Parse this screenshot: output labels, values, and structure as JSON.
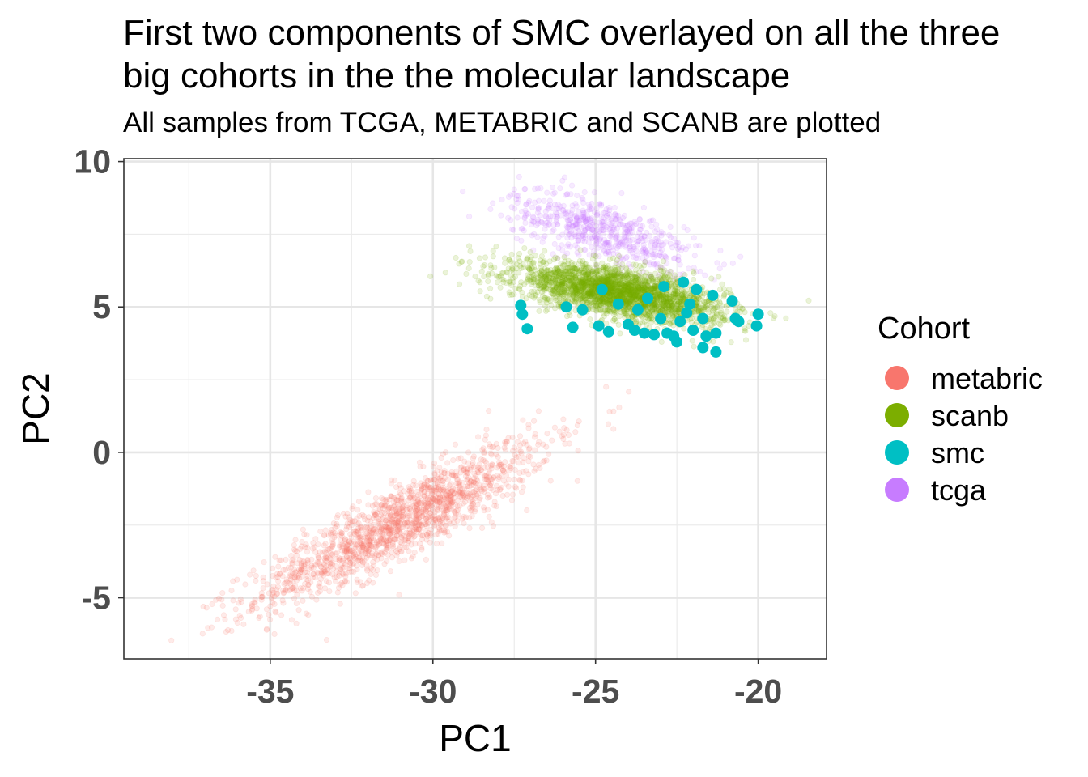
{
  "chart_data": {
    "type": "scatter",
    "title": "First two components of SMC overlayed on all the three\nbig cohorts in the the molecular landscape",
    "subtitle": "All samples from TCGA, METABRIC and SCANB are plotted",
    "xlabel": "PC1",
    "ylabel": "PC2",
    "xlim": [
      -39.5,
      -17.9
    ],
    "ylim": [
      -7.1,
      10.1
    ],
    "x_ticks": [
      -35,
      -30,
      -25,
      -20
    ],
    "y_ticks": [
      -5,
      0,
      5,
      10
    ],
    "x_tick_labels": [
      "-35",
      "-30",
      "-25",
      "-20"
    ],
    "y_tick_labels": [
      "-5",
      "0",
      "5",
      "10"
    ],
    "grid": true,
    "legend": {
      "title": "Cohort",
      "position": "right"
    },
    "series": [
      {
        "name": "metabric",
        "color": "#F8766D",
        "alpha": 0.15,
        "cloud": {
          "n": 1600,
          "center": [
            -31.0,
            -2.4
          ],
          "sd_major": 2.6,
          "sd_minor": 0.55,
          "slope": 0.6
        }
      },
      {
        "name": "scanb",
        "color": "#7CAE00",
        "alpha": 0.15,
        "cloud": {
          "n": 2600,
          "center": [
            -24.3,
            5.5
          ],
          "sd_major": 1.6,
          "sd_minor": 0.4,
          "slope": -0.2
        }
      },
      {
        "name": "tcga",
        "color": "#C77CFF",
        "alpha": 0.15,
        "cloud": {
          "n": 600,
          "center": [
            -24.8,
            7.6
          ],
          "sd_major": 1.5,
          "sd_minor": 0.5,
          "slope": -0.35
        }
      },
      {
        "name": "smc",
        "color": "#00BFC4",
        "alpha": 1.0,
        "points": [
          [
            -27.3,
            5.05
          ],
          [
            -27.25,
            4.75
          ],
          [
            -27.1,
            4.25
          ],
          [
            -25.7,
            4.3
          ],
          [
            -25.9,
            5.0
          ],
          [
            -25.4,
            4.9
          ],
          [
            -24.9,
            4.35
          ],
          [
            -24.6,
            4.15
          ],
          [
            -24.3,
            5.1
          ],
          [
            -24.0,
            4.4
          ],
          [
            -23.8,
            4.2
          ],
          [
            -23.5,
            4.1
          ],
          [
            -23.2,
            4.05
          ],
          [
            -23.0,
            4.6
          ],
          [
            -22.8,
            4.1
          ],
          [
            -22.6,
            4.0
          ],
          [
            -22.5,
            3.8
          ],
          [
            -22.4,
            4.5
          ],
          [
            -22.3,
            5.85
          ],
          [
            -22.2,
            4.8
          ],
          [
            -22.0,
            4.2
          ],
          [
            -21.9,
            5.6
          ],
          [
            -21.7,
            4.6
          ],
          [
            -21.7,
            3.6
          ],
          [
            -21.6,
            4.0
          ],
          [
            -21.4,
            5.4
          ],
          [
            -21.3,
            4.1
          ],
          [
            -21.3,
            3.45
          ],
          [
            -20.8,
            5.2
          ],
          [
            -20.7,
            4.6
          ],
          [
            -20.6,
            4.5
          ],
          [
            -20.05,
            4.35
          ],
          [
            -20.0,
            4.75
          ],
          [
            -23.4,
            5.3
          ],
          [
            -24.8,
            5.6
          ],
          [
            -22.9,
            5.7
          ],
          [
            -22.1,
            5.1
          ],
          [
            -23.7,
            4.9
          ]
        ]
      }
    ]
  }
}
